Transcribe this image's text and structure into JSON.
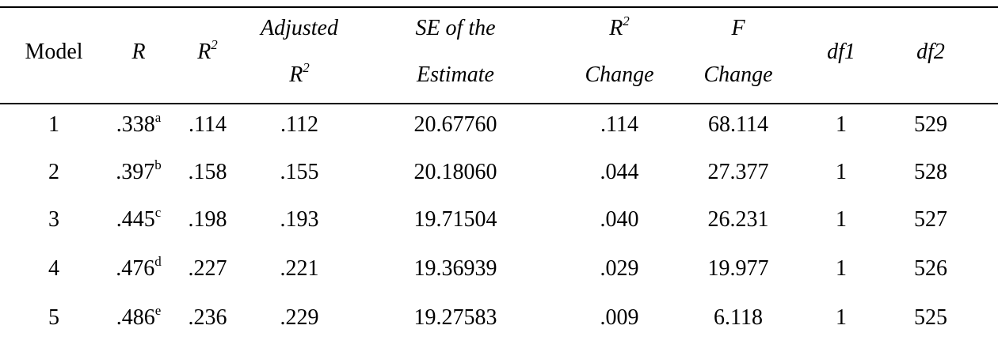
{
  "table": {
    "columns": [
      {
        "key": "model",
        "lines": [
          {
            "text": "Model"
          }
        ]
      },
      {
        "key": "r",
        "lines": [
          {
            "text": "R"
          }
        ]
      },
      {
        "key": "r2",
        "lines": [
          {
            "text": "R",
            "sup": "2"
          }
        ]
      },
      {
        "key": "adj_r2",
        "lines": [
          {
            "text": "Adjusted"
          },
          {
            "text": "R",
            "sup": "2"
          }
        ]
      },
      {
        "key": "se",
        "lines": [
          {
            "text": "SE of the"
          },
          {
            "text": "Estimate"
          }
        ]
      },
      {
        "key": "r2_change",
        "lines": [
          {
            "text": "R",
            "sup": "2"
          },
          {
            "text": "Change"
          }
        ]
      },
      {
        "key": "f_change",
        "lines": [
          {
            "text": "F"
          },
          {
            "text": "Change"
          }
        ]
      },
      {
        "key": "df1",
        "lines": [
          {
            "text": "df1"
          }
        ]
      },
      {
        "key": "df2",
        "lines": [
          {
            "text": "df2"
          }
        ]
      }
    ],
    "rows": [
      {
        "model": "1",
        "r": ".338",
        "r_sup": "a",
        "r2": ".114",
        "adj_r2": ".112",
        "se": "20.67760",
        "r2_change": ".114",
        "f_change": "68.114",
        "df1": "1",
        "df2": "529"
      },
      {
        "model": "2",
        "r": ".397",
        "r_sup": "b",
        "r2": ".158",
        "adj_r2": ".155",
        "se": "20.18060",
        "r2_change": ".044",
        "f_change": "27.377",
        "df1": "1",
        "df2": "528"
      },
      {
        "model": "3",
        "r": ".445",
        "r_sup": "c",
        "r2": ".198",
        "adj_r2": ".193",
        "se": "19.71504",
        "r2_change": ".040",
        "f_change": "26.231",
        "df1": "1",
        "df2": "527"
      },
      {
        "model": "4",
        "r": ".476",
        "r_sup": "d",
        "r2": ".227",
        "adj_r2": ".221",
        "se": "19.36939",
        "r2_change": ".029",
        "f_change": "19.977",
        "df1": "1",
        "df2": "526"
      },
      {
        "model": "5",
        "r": ".486",
        "r_sup": "e",
        "r2": ".236",
        "adj_r2": ".229",
        "se": "19.27583",
        "r2_change": ".009",
        "f_change": "6.118",
        "df1": "1",
        "df2": "525"
      }
    ]
  }
}
